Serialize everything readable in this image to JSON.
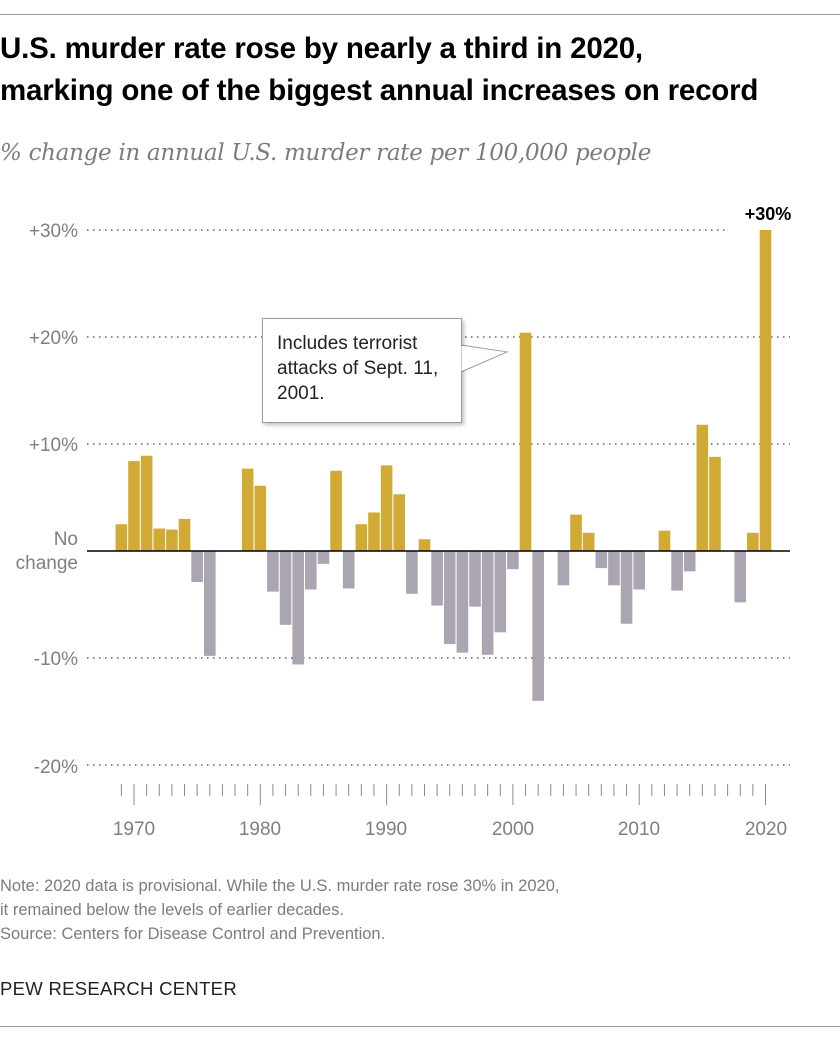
{
  "title": [
    "U.S. murder rate rose by nearly a third in 2020,",
    "marking one of the biggest annual increases on record"
  ],
  "subtitle": "% change in annual U.S. murder rate per 100,000 people",
  "annotation": "Includes terrorist attacks of Sept. 11, 2001.",
  "note": [
    "Note: 2020 data is provisional. While the U.S. murder rate rose 30% in 2020,",
    "it remained below the levels of earlier decades."
  ],
  "source": "Source: Centers for Disease Control and Prevention.",
  "brand": "PEW RESEARCH CENTER",
  "chart_data": {
    "type": "bar",
    "title": "U.S. murder rate rose by nearly a third in 2020, marking one of the biggest annual increases on record",
    "subtitle": "% change in annual U.S. murder rate per 100,000 people",
    "xlabel": "",
    "ylabel": "",
    "ylim": [
      -20,
      30
    ],
    "yticks": [
      {
        "value": 30,
        "label": "+30%"
      },
      {
        "value": 20,
        "label": "+20%"
      },
      {
        "value": 10,
        "label": "+10%"
      },
      {
        "value": 0,
        "label": "No change"
      },
      {
        "value": -10,
        "label": "-10%"
      },
      {
        "value": -20,
        "label": "-20%"
      }
    ],
    "xticks": [
      "1970",
      "1980",
      "1990",
      "2000",
      "2010",
      "2020"
    ],
    "grid": true,
    "colors": {
      "increase": "#D1A935",
      "decrease": "#ABA5B1"
    },
    "data_label": {
      "year": 2020,
      "label": "+30%"
    },
    "x": [
      1969,
      1970,
      1971,
      1972,
      1973,
      1974,
      1975,
      1976,
      1977,
      1978,
      1979,
      1980,
      1981,
      1982,
      1983,
      1984,
      1985,
      1986,
      1987,
      1988,
      1989,
      1990,
      1991,
      1992,
      1993,
      1994,
      1995,
      1996,
      1997,
      1998,
      1999,
      2000,
      2001,
      2002,
      2003,
      2004,
      2005,
      2006,
      2007,
      2008,
      2009,
      2010,
      2011,
      2012,
      2013,
      2014,
      2015,
      2016,
      2017,
      2018,
      2019,
      2020
    ],
    "values": [
      2.5,
      8.4,
      8.9,
      2.1,
      2.0,
      3.0,
      -2.9,
      -9.8,
      0,
      0,
      7.7,
      6.1,
      -3.8,
      -6.9,
      -10.6,
      -3.6,
      -1.2,
      7.5,
      -3.5,
      2.5,
      3.6,
      8.0,
      5.3,
      -4.0,
      1.1,
      -5.1,
      -8.7,
      -9.5,
      -5.2,
      -9.7,
      -7.6,
      -1.7,
      20.4,
      -14.0,
      0,
      -3.2,
      3.4,
      1.7,
      -1.6,
      -3.2,
      -6.8,
      -3.6,
      0,
      1.9,
      -3.7,
      -1.9,
      11.8,
      8.8,
      0,
      -4.8,
      1.7,
      30.0
    ]
  }
}
